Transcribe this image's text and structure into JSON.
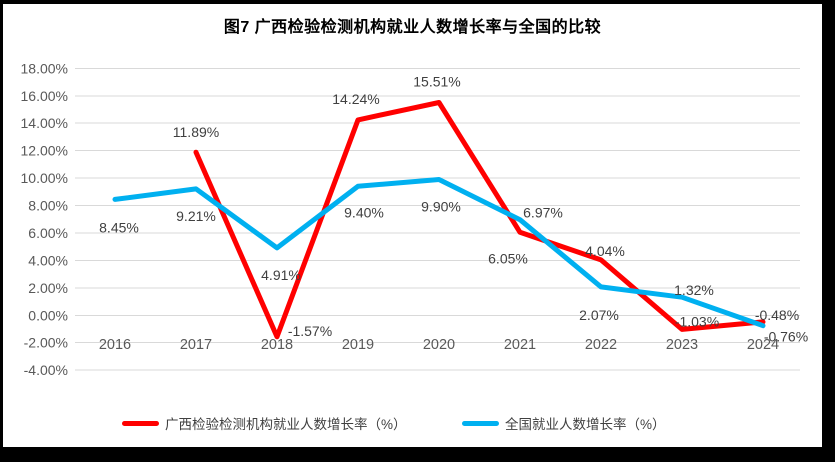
{
  "figure": {
    "title": "图7 广西检验检测机构就业人数增长率与全国的比较"
  },
  "chart_data": {
    "type": "line",
    "categories": [
      "2016",
      "2017",
      "2018",
      "2019",
      "2020",
      "2021",
      "2022",
      "2023",
      "2024"
    ],
    "series": [
      {
        "name": "广西检验检测机构就业人数增长率（%）",
        "color": "#ff0000",
        "values": [
          null,
          11.89,
          -1.57,
          14.24,
          15.51,
          6.05,
          4.04,
          -1.03,
          -0.48
        ],
        "data_labels": [
          null,
          "11.89%",
          "-1.57%",
          "14.24%",
          "15.51%",
          "6.05%",
          "4.04%",
          "-1.03%",
          "-0.48%"
        ],
        "label_offsets": [
          null,
          [
            0,
            -20
          ],
          [
            33,
            -6
          ],
          [
            -2,
            -21
          ],
          [
            -2,
            -21
          ],
          [
            -12,
            26
          ],
          [
            4,
            -9
          ],
          [
            15,
            -8
          ],
          [
            14,
            -7
          ]
        ]
      },
      {
        "name": "全国就业人数增长率（%）",
        "color": "#00b0f0",
        "values": [
          8.45,
          9.21,
          4.91,
          9.4,
          9.9,
          6.97,
          2.07,
          1.32,
          -0.76
        ],
        "data_labels": [
          "8.45%",
          "9.21%",
          "4.91%",
          "9.40%",
          "9.90%",
          "6.97%",
          "2.07%",
          "1.32%",
          "-0.76%"
        ],
        "label_offsets": [
          [
            4,
            28
          ],
          [
            0,
            27
          ],
          [
            4,
            27
          ],
          [
            6,
            26
          ],
          [
            2,
            27
          ],
          [
            23,
            -7
          ],
          [
            -2,
            28
          ],
          [
            12,
            -7
          ],
          [
            23,
            11
          ]
        ]
      }
    ],
    "ylim": [
      -4,
      18
    ],
    "ytick_step": 2,
    "ytick_labels": [
      "18.00%",
      "16.00%",
      "14.00%",
      "12.00%",
      "10.00%",
      "8.00%",
      "6.00%",
      "4.00%",
      "2.00%",
      "0.00%",
      "-2.00%",
      "-4.00%"
    ],
    "grid": true,
    "legend_position": "bottom",
    "gridline_color": "#d9d9d9",
    "axis_label_color": "#595959",
    "data_label_color": "#404040",
    "frame_color": "#000000"
  }
}
